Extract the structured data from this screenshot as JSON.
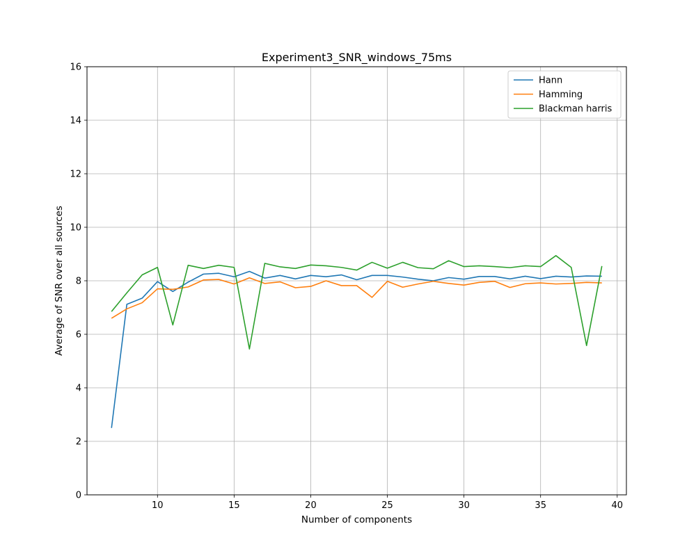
{
  "chart_data": {
    "type": "line",
    "title": "Experiment3_SNR_windows_75ms",
    "xlabel": "Number of components",
    "ylabel": "Average of SNR over all sources",
    "xlim": [
      5.4,
      40.6
    ],
    "ylim": [
      0,
      16
    ],
    "xticks": [
      10,
      15,
      20,
      25,
      30,
      35,
      40
    ],
    "yticks": [
      0,
      2,
      4,
      6,
      8,
      10,
      12,
      14,
      16
    ],
    "grid": true,
    "legend_position": "top-right",
    "x": [
      7,
      8,
      9,
      10,
      11,
      12,
      13,
      14,
      15,
      16,
      17,
      18,
      19,
      20,
      21,
      22,
      23,
      24,
      25,
      26,
      27,
      28,
      29,
      30,
      31,
      32,
      33,
      34,
      35,
      36,
      37,
      38,
      39
    ],
    "series": [
      {
        "name": "Hann",
        "color": "#1f77b4",
        "values": [
          2.5,
          7.12,
          7.35,
          7.97,
          7.6,
          7.95,
          8.25,
          8.28,
          8.15,
          8.35,
          8.1,
          8.2,
          8.07,
          8.2,
          8.15,
          8.22,
          8.04,
          8.2,
          8.2,
          8.14,
          8.06,
          8.0,
          8.12,
          8.06,
          8.16,
          8.16,
          8.07,
          8.17,
          8.08,
          8.17,
          8.14,
          8.18,
          8.17
        ]
      },
      {
        "name": "Hamming",
        "color": "#ff7f0e",
        "values": [
          6.6,
          6.95,
          7.18,
          7.7,
          7.68,
          7.77,
          8.03,
          8.05,
          7.88,
          8.11,
          7.9,
          7.96,
          7.74,
          7.79,
          8.0,
          7.82,
          7.82,
          7.38,
          7.98,
          7.76,
          7.88,
          7.98,
          7.9,
          7.84,
          7.94,
          7.98,
          7.75,
          7.89,
          7.92,
          7.88,
          7.9,
          7.94,
          7.92
        ]
      },
      {
        "name": "Blackman harris",
        "color": "#2ca02c",
        "values": [
          6.85,
          7.55,
          8.22,
          8.5,
          6.35,
          8.58,
          8.46,
          8.58,
          8.5,
          5.45,
          8.65,
          8.52,
          8.46,
          8.59,
          8.56,
          8.5,
          8.4,
          8.69,
          8.47,
          8.69,
          8.49,
          8.45,
          8.75,
          8.53,
          8.56,
          8.53,
          8.49,
          8.56,
          8.53,
          8.94,
          8.5,
          5.58,
          8.55
        ]
      }
    ]
  }
}
